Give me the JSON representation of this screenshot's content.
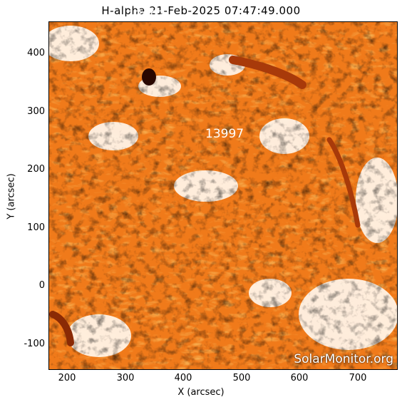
{
  "title": "H-alpha 21-Feb-2025 07:47:49.000",
  "x_axis_label": "X (arcsec)",
  "y_axis_label": "Y (arcsec)",
  "x_ticks": [
    "200",
    "300",
    "400",
    "500",
    "600",
    "700"
  ],
  "y_ticks": [
    "400",
    "300",
    "200",
    "100",
    "0",
    "-100"
  ],
  "region_labels": [
    "13993",
    "13997"
  ],
  "watermark": "SolarMonitor.org",
  "colors": {
    "chromosphere": "#f07a1a",
    "plage": "#fff3e6",
    "filament": "#a83a0a",
    "spot": "#2a0800"
  }
}
